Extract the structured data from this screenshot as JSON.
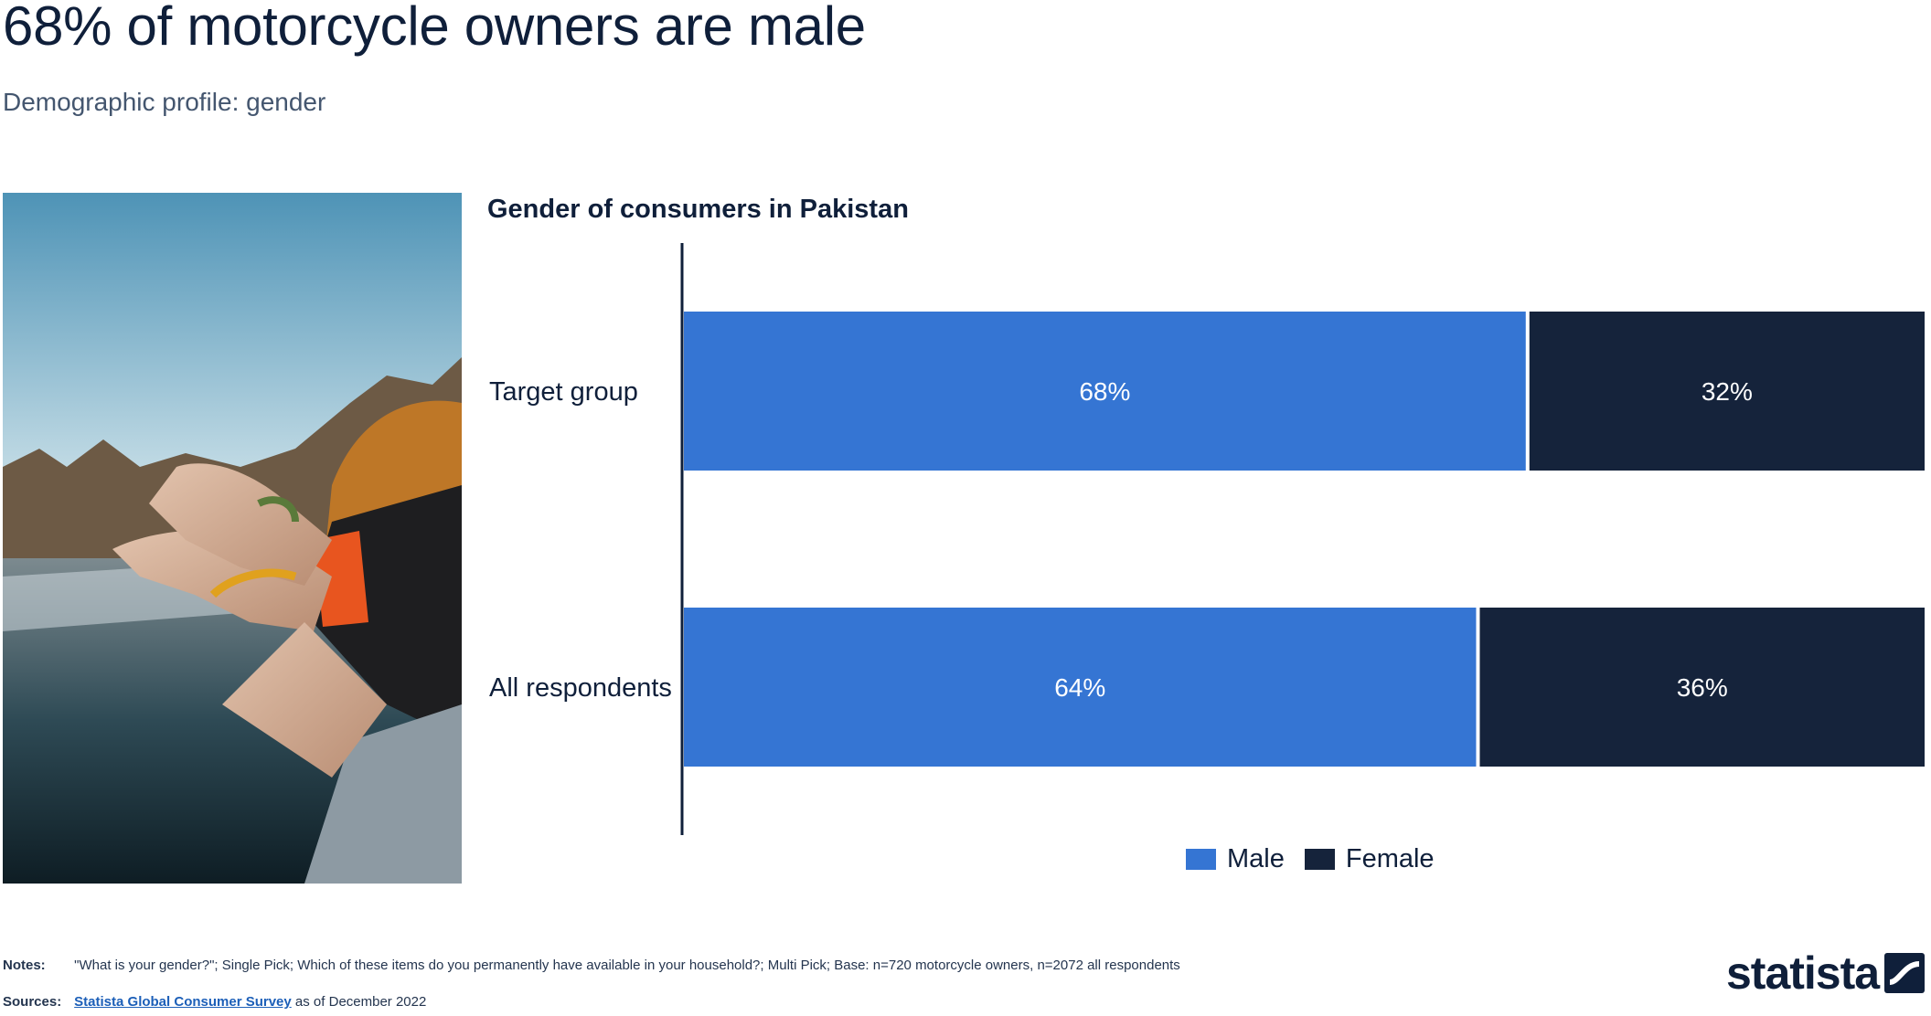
{
  "header": {
    "title": "68% of motorcycle owners are male",
    "subtitle": "Demographic profile: gender"
  },
  "chart_data": {
    "type": "bar",
    "orientation": "horizontal",
    "stacked": true,
    "title": "Gender of consumers in Pakistan",
    "categories": [
      "Target group",
      "All respondents"
    ],
    "series": [
      {
        "name": "Male",
        "values": [
          68,
          64
        ],
        "labels": [
          "68%",
          "64%"
        ],
        "color": "#3575d3"
      },
      {
        "name": "Female",
        "values": [
          32,
          36
        ],
        "labels": [
          "32%",
          "36%"
        ],
        "color": "#15233b"
      }
    ],
    "xlim": [
      0,
      100
    ],
    "grid": false,
    "legend_position": "bottom"
  },
  "footer": {
    "notes_label": "Notes:",
    "notes_text": "\"What is your gender?\"; Single Pick; Which of these items do you permanently have available in your household?; Multi Pick; Base: n=720 motorcycle owners, n=2072 all respondents",
    "sources_label": "Sources:",
    "source_link": "Statista Global Consumer Survey",
    "source_suffix": "as of December 2022"
  },
  "brand": {
    "logo_text": "statista"
  }
}
